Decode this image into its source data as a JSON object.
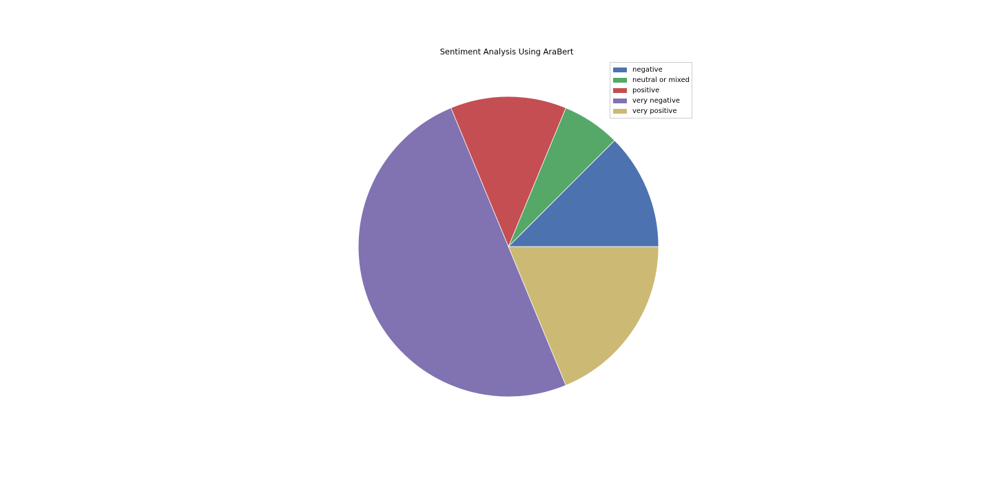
{
  "chart_data": {
    "type": "pie",
    "title": "Sentiment Analysis Using AraBert",
    "legend_position": "top-right",
    "start_angle_deg": 0,
    "direction": "counterclockwise",
    "slices": [
      {
        "label": "negative",
        "value": 12.5,
        "color": "#4C72B0"
      },
      {
        "label": "neutral or mixed",
        "value": 6.25,
        "color": "#55A868"
      },
      {
        "label": "positive",
        "value": 12.5,
        "color": "#C44E52"
      },
      {
        "label": "very negative",
        "value": 50.0,
        "color": "#8172B2"
      },
      {
        "label": "very positive",
        "value": 18.75,
        "color": "#CCB974"
      }
    ]
  }
}
